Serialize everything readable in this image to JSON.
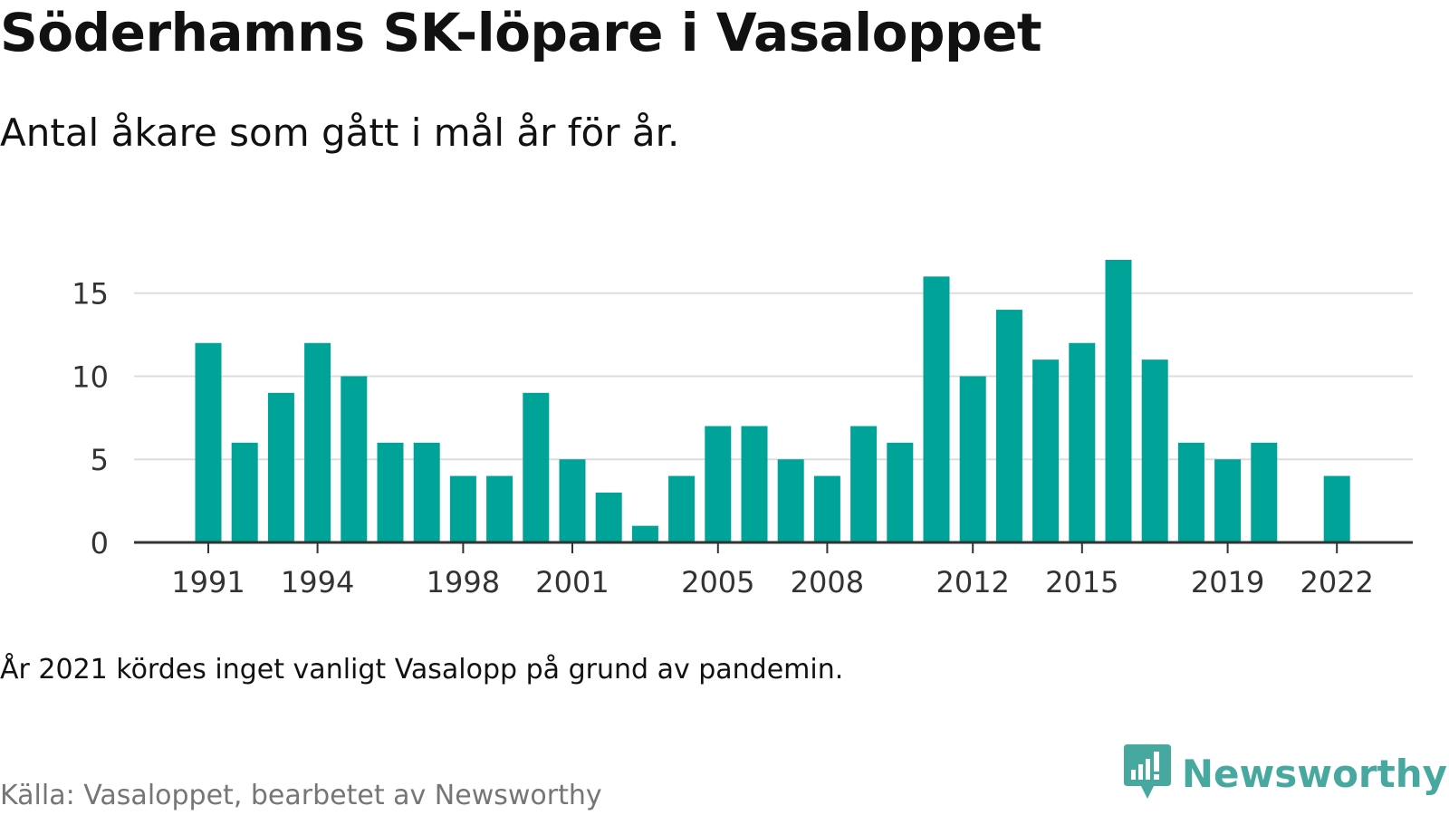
{
  "title": "Söderhamns SK-löpare i Vasaloppet",
  "subtitle": "Antal åkare som gått i mål år för år.",
  "note": "År 2021 kördes inget vanligt Vasalopp på grund av pandemin.",
  "source": "Källa: Vasaloppet, bearbetet av Newsworthy",
  "brand": {
    "name": "Newsworthy",
    "logo_icon": "newsworthy-chart-logo-icon",
    "color": "#47a8a0"
  },
  "colors": {
    "bar": "#00a398",
    "grid": "#dddddd",
    "axis": "#333333",
    "tick_text": "#333333"
  },
  "chart_data": {
    "type": "bar",
    "title": "Söderhamns SK-löpare i Vasaloppet",
    "subtitle": "Antal åkare som gått i mål år för år.",
    "xlabel": "",
    "ylabel": "",
    "categories": [
      1991,
      1992,
      1993,
      1994,
      1995,
      1996,
      1997,
      1998,
      1999,
      2000,
      2001,
      2002,
      2003,
      2004,
      2005,
      2006,
      2007,
      2008,
      2009,
      2010,
      2011,
      2012,
      2013,
      2014,
      2015,
      2016,
      2017,
      2018,
      2019,
      2020,
      2021,
      2022
    ],
    "values": [
      12,
      6,
      9,
      12,
      10,
      6,
      6,
      4,
      4,
      9,
      5,
      3,
      1,
      4,
      7,
      7,
      5,
      4,
      7,
      6,
      16,
      10,
      14,
      11,
      12,
      17,
      11,
      6,
      5,
      6,
      null,
      4
    ],
    "x_tick_labels": [
      "1991",
      "1994",
      "1998",
      "2001",
      "2005",
      "2008",
      "2012",
      "2015",
      "2019",
      "2022"
    ],
    "y_ticks": [
      0,
      5,
      10,
      15
    ],
    "ylim": [
      0,
      17
    ],
    "grid": true,
    "legend": "none"
  }
}
